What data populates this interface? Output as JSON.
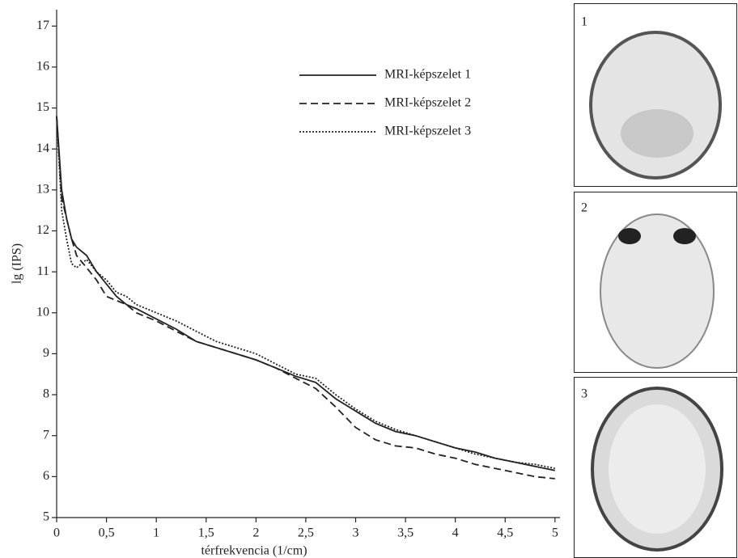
{
  "chart_data": {
    "type": "line",
    "x_label": "térfrekvencia (1/cm)",
    "y_label": "lg (IPS)",
    "x": [
      0,
      0.05,
      0.1,
      0.15,
      0.2,
      0.3,
      0.4,
      0.5,
      0.6,
      0.7,
      0.8,
      1.0,
      1.2,
      1.4,
      1.6,
      1.8,
      2.0,
      2.2,
      2.4,
      2.6,
      2.8,
      3.0,
      3.2,
      3.4,
      3.6,
      3.8,
      4.0,
      4.2,
      4.4,
      4.6,
      4.8,
      5.0
    ],
    "series": [
      {
        "name": "MRI-képszelet 1",
        "color": "#222222",
        "style": "solid",
        "values": [
          14.8,
          13.0,
          12.3,
          11.8,
          11.6,
          11.4,
          11.0,
          10.7,
          10.4,
          10.2,
          10.1,
          9.85,
          9.6,
          9.3,
          9.15,
          9.0,
          8.85,
          8.65,
          8.45,
          8.3,
          7.9,
          7.6,
          7.3,
          7.1,
          7.0,
          6.85,
          6.7,
          6.6,
          6.45,
          6.35,
          6.25,
          6.15
        ]
      },
      {
        "name": "MRI-képszelet 2",
        "color": "#222222",
        "style": "dashed",
        "values": [
          14.8,
          12.8,
          12.3,
          11.8,
          11.4,
          11.1,
          10.8,
          10.4,
          10.3,
          10.2,
          10.0,
          9.8,
          9.55,
          9.3,
          9.15,
          9.0,
          8.85,
          8.65,
          8.4,
          8.15,
          7.7,
          7.2,
          6.9,
          6.75,
          6.7,
          6.55,
          6.45,
          6.3,
          6.2,
          6.1,
          6.0,
          5.95
        ]
      },
      {
        "name": "MRI-képszelet 3",
        "color": "#222222",
        "style": "dotted",
        "values": [
          14.8,
          12.5,
          11.8,
          11.2,
          11.1,
          11.3,
          11.0,
          10.8,
          10.5,
          10.4,
          10.2,
          10.0,
          9.8,
          9.55,
          9.3,
          9.15,
          9.0,
          8.75,
          8.5,
          8.4,
          8.0,
          7.65,
          7.35,
          7.15,
          7.0,
          6.85,
          6.7,
          6.55,
          6.45,
          6.35,
          6.3,
          6.2
        ]
      }
    ],
    "xlim": [
      0,
      5.05
    ],
    "ylim": [
      5,
      17.4
    ],
    "xticks": [
      0,
      {
        "value": 0.5,
        "label": "0,5"
      },
      1,
      {
        "value": 1.5,
        "label": "1,5"
      },
      2,
      {
        "value": 2.5,
        "label": "2,5"
      },
      3,
      {
        "value": 3.5,
        "label": "3,5"
      },
      4,
      {
        "value": 4.5,
        "label": "4,5"
      },
      5
    ],
    "yticks": [
      5,
      6,
      7,
      8,
      9,
      10,
      11,
      12,
      13,
      14,
      15,
      16,
      17
    ],
    "grid": false,
    "legend": "top"
  },
  "images": [
    "1",
    "2",
    "3"
  ]
}
